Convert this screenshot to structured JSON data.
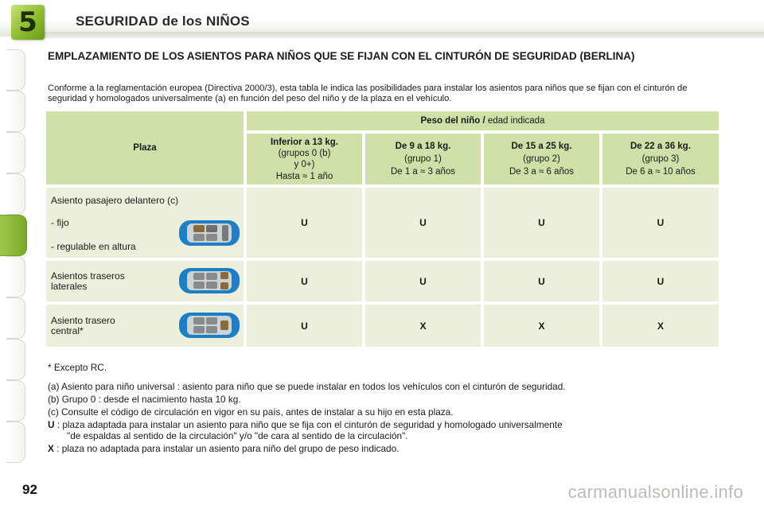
{
  "header": {
    "chapter_number": "5",
    "chapter_title": "SEGURIDAD de los NIÑOS"
  },
  "section": {
    "title": "EMPLAZAMIENTO DE LOS ASIENTOS PARA NIÑOS QUE SE FIJAN CON EL CINTURÓN DE SEGURIDAD (BERLINA)",
    "intro": "Conforme a la reglamentación europea (Directiva 2000/3), esta tabla le indica las posibilidades para instalar los asientos para niños que se fijan con el cinturón de seguridad y homologados universalmente (a) en función del peso del niño y de la plaza en el vehículo."
  },
  "table": {
    "plaza_header": "Plaza",
    "weight_header_bold": "Peso del niño /",
    "weight_header_normal": "edad indicada",
    "columns": [
      {
        "title": "Inferior a 13 kg.",
        "group": "(grupos 0 (b)",
        "group2": "y 0+)",
        "age": "Hasta ≈ 1 año"
      },
      {
        "title": "De 9 a 18 kg.",
        "group": "(grupo 1)",
        "age": "De 1 a ≈ 3 años"
      },
      {
        "title": "De 15 a 25 kg.",
        "group": "(grupo 2)",
        "age": "De 3 a ≈ 6 años"
      },
      {
        "title": "De 22 a 36 kg.",
        "group": "(grupo 3)",
        "age": "De 6 a ≈ 10 años"
      }
    ],
    "rows": [
      {
        "label": "Asiento pasajero delantero (c)",
        "sub1": "- fijo",
        "sub2": "- regulable en altura",
        "values": [
          "U",
          "U",
          "U",
          "U"
        ]
      },
      {
        "label": "Asientos traseros",
        "label2": "laterales",
        "values": [
          "U",
          "U",
          "U",
          "U"
        ]
      },
      {
        "label": "Asiento trasero",
        "label2": "central*",
        "values": [
          "U",
          "X",
          "X",
          "X"
        ]
      }
    ]
  },
  "notes": {
    "footnote": "* Excepto RC.",
    "a": "(a) Asiento para niño universal : asiento para niño que se puede instalar en todos los vehículos con el cinturón de seguridad.",
    "b": "(b) Grupo 0 : desde el nacimiento hasta 10 kg.",
    "c": "(c) Consulte el código de circulación en vigor en su país, antes de instalar a su hijo en esta plaza.",
    "u_key": "U",
    "u_text": ": plaza adaptada para instalar un asiento para niño que se fija con el cinturón de seguridad y homologado universalmente",
    "u_text2": "\"de espaldas al sentido de la circulación\" y/o \"de cara al sentido de la circulación\".",
    "x_key": "X",
    "x_text": ": plaza no adaptada para instalar un asiento para niño del grupo de peso indicado."
  },
  "footer": {
    "page_number": "92",
    "watermark": "carmanualsonline.info"
  },
  "colors": {
    "accent_green": "#8cbd2e",
    "header_cell": "#cfe0a8",
    "body_cell": "#ecefdc",
    "car_blue": "#1f7fc4"
  }
}
